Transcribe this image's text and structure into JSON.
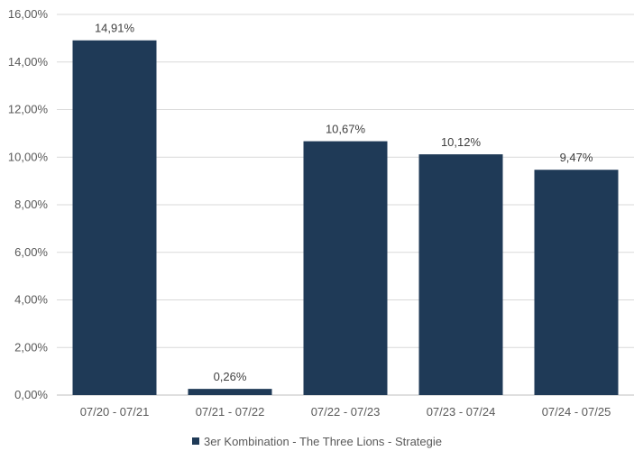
{
  "chart_data": {
    "type": "bar",
    "categories": [
      "07/20 - 07/21",
      "07/21 - 07/22",
      "07/22 - 07/23",
      "07/23 - 07/24",
      "07/24 - 07/25"
    ],
    "series": [
      {
        "name": "3er Kombination - The Three Lions - Strategie",
        "values": [
          14.91,
          0.26,
          10.67,
          10.12,
          9.47
        ],
        "data_labels": [
          "14,91%",
          "0,26%",
          "10,67%",
          "10,12%",
          "9,47%"
        ]
      }
    ],
    "ylim": [
      0,
      16
    ],
    "yticks": [
      0,
      2,
      4,
      6,
      8,
      10,
      12,
      14,
      16
    ],
    "ytick_labels": [
      "0,00%",
      "2,00%",
      "4,00%",
      "6,00%",
      "8,00%",
      "10,00%",
      "12,00%",
      "14,00%",
      "16,00%"
    ],
    "grid": true,
    "legend_position": "bottom",
    "colors": {
      "bar": "#1f3a57",
      "grid": "#d9d9d9",
      "axis": "#bfbfbf"
    }
  }
}
